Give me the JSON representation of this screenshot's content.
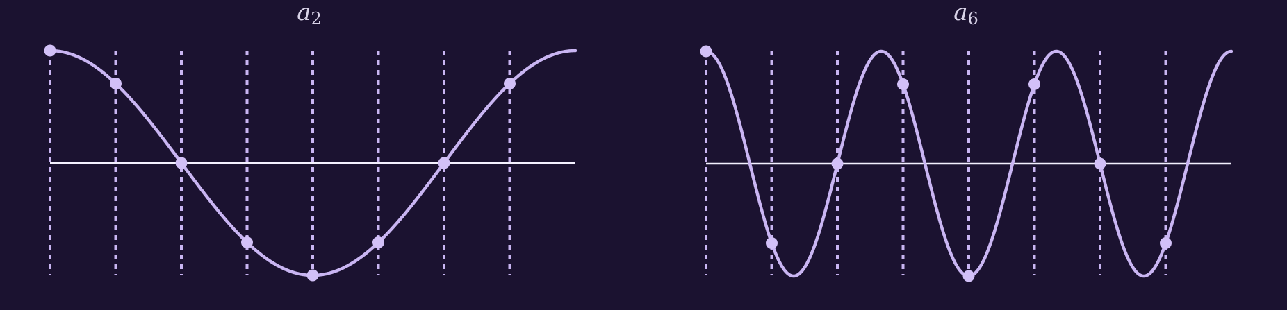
{
  "background": "#1b1230",
  "colors": {
    "curve": "#c9b5f2",
    "dashed": "#c9b5f2",
    "axis": "#f4f1ff",
    "point": "#d2c0f7"
  },
  "panels": [
    {
      "id": "a2",
      "label_base": "a",
      "label_sub": "2",
      "harmonic": 2,
      "samples": 9
    },
    {
      "id": "a6",
      "label_base": "a",
      "label_sub": "6",
      "harmonic": 6,
      "samples": 9
    }
  ]
}
